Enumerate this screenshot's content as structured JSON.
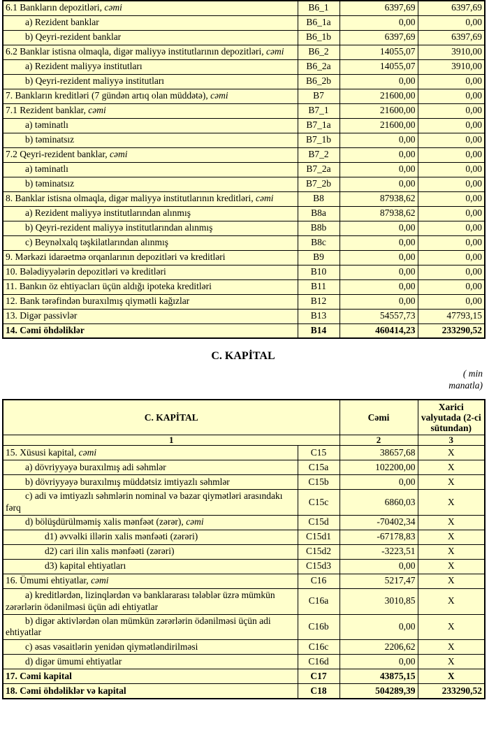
{
  "colors": {
    "cream": "#ffffcc",
    "white": "#ffffff",
    "border": "#000000",
    "text": "#000000"
  },
  "liabilities": {
    "rows": [
      {
        "label": "6.1  Bankların depozitləri, ",
        "label_italic": "cəmi",
        "code": "B6_1",
        "total": "6397,69",
        "foreign": "6397,69",
        "indent": 0,
        "bold": false,
        "white_values": false,
        "white_code": false
      },
      {
        "label": "a) Rezident banklar",
        "label_italic": "",
        "code": "B6_1a",
        "total": "0,00",
        "foreign": "0,00",
        "indent": 1,
        "bold": false,
        "white_values": true,
        "white_code": true
      },
      {
        "label": "b) Qeyri-rezident banklar",
        "label_italic": "",
        "code": "B6_1b",
        "total": "6397,69",
        "foreign": "6397,69",
        "indent": 1,
        "bold": false,
        "white_values": true,
        "white_code": true
      },
      {
        "label": "6.2 Banklar istisna olmaqla, digər maliyyə institutlarının depozitləri, ",
        "label_italic": "cəmi",
        "code": "B6_2",
        "total": "14055,07",
        "foreign": "3910,00",
        "indent": 0,
        "bold": false,
        "white_values": false,
        "white_code": false
      },
      {
        "label": "a) Rezident maliyyə institutları",
        "label_italic": "",
        "code": "B6_2a",
        "total": "14055,07",
        "foreign": "3910,00",
        "indent": 1,
        "bold": false,
        "white_values": true,
        "white_code": false
      },
      {
        "label": "b) Qeyri-rezident maliyyə institutları",
        "label_italic": "",
        "code": "B6_2b",
        "total": "0,00",
        "foreign": "0,00",
        "indent": 1,
        "bold": false,
        "white_values": true,
        "white_code": false
      },
      {
        "label": "7. Bankların kreditləri (7 gündən artıq olan müddətə), ",
        "label_italic": "cəmi",
        "code": "B7",
        "total": "21600,00",
        "foreign": "0,00",
        "indent": 0,
        "bold": false,
        "white_values": false,
        "white_code": false
      },
      {
        "label": "7.1 Rezident banklar, ",
        "label_italic": "cəmi",
        "code": "B7_1",
        "total": "21600,00",
        "foreign": "0,00",
        "indent": 0,
        "bold": false,
        "white_values": false,
        "white_code": false
      },
      {
        "label": "a) təminatlı",
        "label_italic": "",
        "code": "B7_1a",
        "total": "21600,00",
        "foreign": "0,00",
        "indent": 1,
        "bold": false,
        "white_values": true,
        "white_code": true
      },
      {
        "label": "b) təminatsız",
        "label_italic": "",
        "code": "B7_1b",
        "total": "0,00",
        "foreign": "0,00",
        "indent": 1,
        "bold": false,
        "white_values": true,
        "white_code": false
      },
      {
        "label": "7.2 Qeyri-rezident banklar, ",
        "label_italic": "cəmi",
        "code": "B7_2",
        "total": "0,00",
        "foreign": "0,00",
        "indent": 0,
        "bold": false,
        "white_values": false,
        "white_code": false
      },
      {
        "label": "a) təminatlı",
        "label_italic": "",
        "code": "B7_2a",
        "total": "0,00",
        "foreign": "0,00",
        "indent": 1,
        "bold": false,
        "white_values": true,
        "white_code": true
      },
      {
        "label": "b) təminatsız",
        "label_italic": "",
        "code": "B7_2b",
        "total": "0,00",
        "foreign": "0,00",
        "indent": 1,
        "bold": false,
        "white_values": true,
        "white_code": false
      },
      {
        "label": "8. Banklar istisna olmaqla, digər maliyyə institutlarının kreditləri, ",
        "label_italic": "cəmi",
        "code": "B8",
        "total": "87938,62",
        "foreign": "0,00",
        "indent": 0,
        "bold": false,
        "white_values": false,
        "white_code": false
      },
      {
        "label": "a) Rezident maliyyə institutlarından alınmış",
        "label_italic": "",
        "code": "B8a",
        "total": "87938,62",
        "foreign": "0,00",
        "indent": 1,
        "bold": false,
        "white_values": true,
        "white_code": false
      },
      {
        "label": "b) Qeyri-rezident maliyyə institutlarından alınmış",
        "label_italic": "",
        "code": "B8b",
        "total": "0,00",
        "foreign": "0,00",
        "indent": 1,
        "bold": false,
        "white_values": true,
        "white_code": false
      },
      {
        "label": "c) Beynəlxalq təşkilatlarından alınmış",
        "label_italic": "",
        "code": "B8c",
        "total": "0,00",
        "foreign": "0,00",
        "indent": 1,
        "bold": false,
        "white_values": true,
        "white_code": false
      },
      {
        "label": "9. Mərkəzi idarəetmə orqanlarının depozitləri və kreditləri",
        "label_italic": "",
        "code": "B9",
        "total": "0,00",
        "foreign": "0,00",
        "indent": 0,
        "bold": false,
        "white_values": true,
        "white_code": false
      },
      {
        "label": "10. Bələdiyyələrin depozitləri və kreditləri",
        "label_italic": "",
        "code": "B10",
        "total": "0,00",
        "foreign": "0,00",
        "indent": 0,
        "bold": false,
        "white_values": true,
        "white_code": false
      },
      {
        "label": "11. Bankın öz ehtiyacları üçün aldığı ipoteka kreditləri",
        "label_italic": "",
        "code": "B11",
        "total": "0,00",
        "foreign": "0,00",
        "indent": 0,
        "bold": false,
        "white_values": true,
        "white_code": false
      },
      {
        "label": "12. Bank tərəfindən buraxılmış qiymətli kağızlar",
        "label_italic": "",
        "code": "B12",
        "total": "0,00",
        "foreign": "0,00",
        "indent": 0,
        "bold": false,
        "white_values": true,
        "white_code": false
      },
      {
        "label": "13. Digər passivlər",
        "label_italic": "",
        "code": "B13",
        "total": "54557,73",
        "foreign": "47793,15",
        "indent": 0,
        "bold": false,
        "white_values": false,
        "white_code": false
      },
      {
        "label": "14. Cəmi öhdəliklər",
        "label_italic": "",
        "code": "B14",
        "total": "460414,23",
        "foreign": "233290,52",
        "indent": 0,
        "bold": true,
        "white_values": false,
        "white_code": false
      }
    ]
  },
  "capital": {
    "title": "C. KAPİTAL",
    "unit_note_line1": "( min",
    "unit_note_line2": "manatla)",
    "header": {
      "col1": "C. KAPİTAL",
      "col2": "Cəmi",
      "col3": "Xarici valyutada (2-ci sütundan)",
      "num1": "1",
      "num2": "2",
      "num3": "3"
    },
    "rows": [
      {
        "label": "15. Xüsusi kapital, ",
        "label_italic": "cəmi",
        "code": "C15",
        "total": "38657,68",
        "foreign": "X",
        "indent": 0,
        "bold": false,
        "white_values": false,
        "white_code": false
      },
      {
        "label": "a) dövriyyəyə buraxılmış adi səhmlər",
        "label_italic": "",
        "code": "C15a",
        "total": "102200,00",
        "foreign": "X",
        "indent": 1,
        "bold": false,
        "white_values": true,
        "white_code": true
      },
      {
        "label": "b) dövriyyəyə buraxılmış müddətsiz imtiyazlı səhmlər",
        "label_italic": "",
        "code": "C15b",
        "total": "0,00",
        "foreign": "X",
        "indent": 1,
        "bold": false,
        "white_values": true,
        "white_code": true
      },
      {
        "label": "c) adi və imtiyazlı səhmlərin nominal və bazar qiymətləri arasındakı fərq",
        "label_italic": "",
        "code": "C15c",
        "total": "6860,03",
        "foreign": "X",
        "indent": 1,
        "bold": false,
        "white_values": false,
        "white_code": false
      },
      {
        "label": "d) bölüşdürülməmiş xalis mənfəət (zərər), ",
        "label_italic": "cəmi",
        "code": "C15d",
        "total": "-70402,34",
        "foreign": "X",
        "indent": 1,
        "bold": false,
        "white_values": false,
        "white_code": false
      },
      {
        "label": "d1) əvvəlki illərin xalis mənfəəti (zərəri)",
        "label_italic": "",
        "code": "C15d1",
        "total": "-67178,83",
        "foreign": "X",
        "indent": 2,
        "bold": false,
        "white_values": false,
        "white_code": false
      },
      {
        "label": "d2) cari ilin xalis mənfəəti (zərəri)",
        "label_italic": "",
        "code": "C15d2",
        "total": "-3223,51",
        "foreign": "X",
        "indent": 2,
        "bold": false,
        "white_values": false,
        "white_code": false
      },
      {
        "label": "d3) kapital ehtiyatları",
        "label_italic": "",
        "code": "C15d3",
        "total": "0,00",
        "foreign": "X",
        "indent": 2,
        "bold": false,
        "white_values": false,
        "white_code": false
      },
      {
        "label": "16. Ümumi ehtiyatlar, ",
        "label_italic": "cəmi",
        "code": "C16",
        "total": "5217,47",
        "foreign": "X",
        "indent": 0,
        "bold": false,
        "white_values": false,
        "white_code": false
      },
      {
        "label": "a) kreditlərdən, lizinqlərdən və banklararası  tələblər üzrə mümkün zərərlərin ödənilməsi üçün adi ehtiyatlar",
        "label_italic": "",
        "code": "C16a",
        "total": "3010,85",
        "foreign": "X",
        "indent": 1,
        "bold": false,
        "white_values": false,
        "white_code": false
      },
      {
        "label": "b) digər aktivlərdən olan mümkün zərərlərin ödənilməsi üçün adi ehtiyatlar",
        "label_italic": "",
        "code": "C16b",
        "total": "0,00",
        "foreign": "X",
        "indent": 1,
        "bold": false,
        "white_values": false,
        "white_code": false
      },
      {
        "label": "c) əsas vəsaitlərin yenidən qiymətləndirilməsi",
        "label_italic": "",
        "code": "C16c",
        "total": "2206,62",
        "foreign": "X",
        "indent": 1,
        "bold": false,
        "white_values": false,
        "white_code": false
      },
      {
        "label": "d) digər ümumi ehtiyatlar",
        "label_italic": "",
        "code": "C16d",
        "total": "0,00",
        "foreign": "X",
        "indent": 1,
        "bold": false,
        "white_values": false,
        "white_code": false
      },
      {
        "label": "17. Cəmi kapital",
        "label_italic": "",
        "code": "C17",
        "total": "43875,15",
        "foreign": "X",
        "indent": 0,
        "bold": true,
        "white_values": false,
        "white_code": false
      },
      {
        "label": "18. Cəmi öhdəliklər və kapital",
        "label_italic": "",
        "code": "C18",
        "total": "504289,39",
        "foreign": "233290,52",
        "indent": 0,
        "bold": true,
        "white_values": false,
        "white_code": false
      }
    ]
  }
}
